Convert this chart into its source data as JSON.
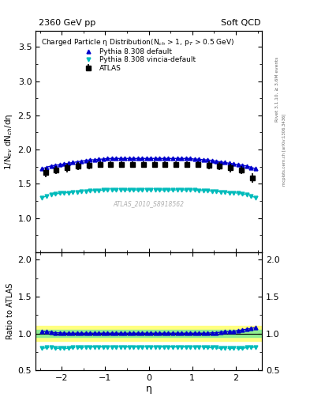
{
  "title_left": "2360 GeV pp",
  "title_right": "Soft QCD",
  "ylabel_main": "1/N$_{ev}$ dN$_{ch}$/dη",
  "ylabel_ratio": "Ratio to ATLAS",
  "xlabel": "η",
  "right_label_top": "Rivet 3.1.10, ≥ 3.6M events",
  "right_label_bottom": "mcplots.cern.ch [arXiv:1306.3436]",
  "watermark": "ATLAS_2010_S8918562",
  "legend_title": "Charged Particle η Distribution(N$_{ch}$ > 1, p$_{T}$ > 0.5 GeV)",
  "legend_entries": [
    "ATLAS",
    "Pythia 8.308 default",
    "Pythia 8.308 vincia-default"
  ],
  "eta_values": [
    -2.375,
    -2.125,
    -1.875,
    -1.625,
    -1.375,
    -1.125,
    -0.875,
    -0.625,
    -0.375,
    -0.125,
    0.125,
    0.375,
    0.625,
    0.875,
    1.125,
    1.375,
    1.625,
    1.875,
    2.125,
    2.375
  ],
  "atlas_data": [
    1.67,
    1.7,
    1.73,
    1.76,
    1.77,
    1.78,
    1.78,
    1.78,
    1.78,
    1.78,
    1.78,
    1.78,
    1.78,
    1.78,
    1.78,
    1.77,
    1.76,
    1.73,
    1.7,
    1.58
  ],
  "atlas_errors": [
    0.07,
    0.06,
    0.06,
    0.06,
    0.06,
    0.05,
    0.05,
    0.05,
    0.05,
    0.05,
    0.05,
    0.05,
    0.05,
    0.05,
    0.05,
    0.06,
    0.06,
    0.06,
    0.06,
    0.07
  ],
  "pythia_default_eta": [
    -2.45,
    -2.35,
    -2.25,
    -2.15,
    -2.05,
    -1.95,
    -1.85,
    -1.75,
    -1.65,
    -1.55,
    -1.45,
    -1.35,
    -1.25,
    -1.15,
    -1.05,
    -0.95,
    -0.85,
    -0.75,
    -0.65,
    -0.55,
    -0.45,
    -0.35,
    -0.25,
    -0.15,
    -0.05,
    0.05,
    0.15,
    0.25,
    0.35,
    0.45,
    0.55,
    0.65,
    0.75,
    0.85,
    0.95,
    1.05,
    1.15,
    1.25,
    1.35,
    1.45,
    1.55,
    1.65,
    1.75,
    1.85,
    1.95,
    2.05,
    2.15,
    2.25,
    2.35,
    2.45
  ],
  "pythia_default_vals": [
    1.72,
    1.74,
    1.76,
    1.77,
    1.78,
    1.79,
    1.8,
    1.81,
    1.82,
    1.83,
    1.84,
    1.85,
    1.85,
    1.86,
    1.86,
    1.87,
    1.87,
    1.87,
    1.87,
    1.87,
    1.87,
    1.87,
    1.87,
    1.87,
    1.87,
    1.87,
    1.87,
    1.87,
    1.87,
    1.87,
    1.87,
    1.87,
    1.87,
    1.87,
    1.87,
    1.86,
    1.86,
    1.85,
    1.85,
    1.84,
    1.83,
    1.82,
    1.81,
    1.8,
    1.79,
    1.78,
    1.77,
    1.76,
    1.74,
    1.72
  ],
  "pythia_vincia_eta": [
    -2.45,
    -2.35,
    -2.25,
    -2.15,
    -2.05,
    -1.95,
    -1.85,
    -1.75,
    -1.65,
    -1.55,
    -1.45,
    -1.35,
    -1.25,
    -1.15,
    -1.05,
    -0.95,
    -0.85,
    -0.75,
    -0.65,
    -0.55,
    -0.45,
    -0.35,
    -0.25,
    -0.15,
    -0.05,
    0.05,
    0.15,
    0.25,
    0.35,
    0.45,
    0.55,
    0.65,
    0.75,
    0.85,
    0.95,
    1.05,
    1.15,
    1.25,
    1.35,
    1.45,
    1.55,
    1.65,
    1.75,
    1.85,
    1.95,
    2.05,
    2.15,
    2.25,
    2.35,
    2.45
  ],
  "pythia_vincia_vals": [
    1.3,
    1.32,
    1.34,
    1.35,
    1.36,
    1.37,
    1.37,
    1.38,
    1.38,
    1.39,
    1.39,
    1.4,
    1.4,
    1.4,
    1.41,
    1.41,
    1.41,
    1.41,
    1.41,
    1.41,
    1.41,
    1.41,
    1.41,
    1.41,
    1.41,
    1.41,
    1.41,
    1.41,
    1.41,
    1.41,
    1.41,
    1.41,
    1.41,
    1.41,
    1.41,
    1.41,
    1.4,
    1.4,
    1.4,
    1.39,
    1.39,
    1.38,
    1.38,
    1.37,
    1.37,
    1.36,
    1.35,
    1.34,
    1.32,
    1.3
  ],
  "ratio_default_vals": [
    1.03,
    1.025,
    1.02,
    1.01,
    1.01,
    1.005,
    1.005,
    1.005,
    1.005,
    1.005,
    1.005,
    1.005,
    1.005,
    1.005,
    1.005,
    1.005,
    1.005,
    1.005,
    1.005,
    1.005,
    1.005,
    1.005,
    1.005,
    1.005,
    1.005,
    1.005,
    1.005,
    1.005,
    1.005,
    1.005,
    1.005,
    1.005,
    1.005,
    1.005,
    1.005,
    1.005,
    1.005,
    1.005,
    1.005,
    1.01,
    1.01,
    1.02,
    1.025,
    1.025,
    1.03,
    1.04,
    1.05,
    1.06,
    1.07,
    1.08
  ],
  "ratio_vincia_vals": [
    0.8,
    0.81,
    0.81,
    0.8,
    0.8,
    0.8,
    0.8,
    0.81,
    0.81,
    0.81,
    0.81,
    0.82,
    0.82,
    0.82,
    0.82,
    0.82,
    0.82,
    0.82,
    0.82,
    0.82,
    0.82,
    0.82,
    0.82,
    0.82,
    0.82,
    0.82,
    0.82,
    0.82,
    0.82,
    0.82,
    0.82,
    0.82,
    0.82,
    0.82,
    0.82,
    0.82,
    0.82,
    0.82,
    0.81,
    0.81,
    0.81,
    0.8,
    0.8,
    0.8,
    0.8,
    0.8,
    0.8,
    0.81,
    0.81,
    0.82
  ],
  "color_atlas": "#000000",
  "color_default": "#0000cc",
  "color_vincia": "#00bbbb",
  "band_green": "#90ee90",
  "band_yellow": "#ffff80",
  "xlim": [
    -2.6,
    2.6
  ],
  "ylim_main": [
    0.5,
    3.73
  ],
  "ylim_ratio": [
    0.5,
    2.1
  ],
  "yticks_main": [
    1.0,
    1.5,
    2.0,
    2.5,
    3.0,
    3.5
  ],
  "yticks_ratio": [
    0.5,
    1.0,
    1.5,
    2.0
  ],
  "xticks": [
    -2,
    -1,
    0,
    1,
    2
  ]
}
